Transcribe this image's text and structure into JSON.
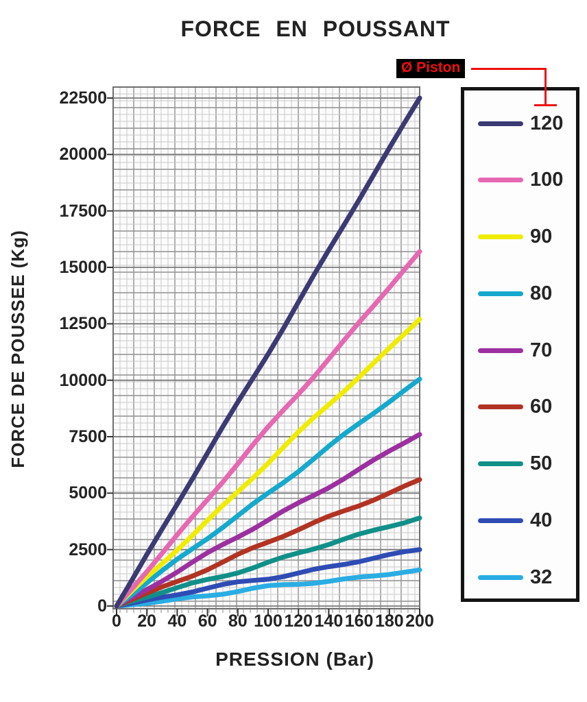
{
  "title": "FORCE EN POUSSANT",
  "axes": {
    "x_title": "PRESSION (Bar)",
    "y_title": "FORCE DE POUSSEE (Kg)"
  },
  "legend": {
    "callout_label": "Ø Piston",
    "callout_color": "#ee0f0f",
    "callout_bg": "#000000"
  },
  "chart_data": {
    "type": "line",
    "title": "FORCE EN POUSSANT",
    "xlabel": "PRESSION (Bar)",
    "ylabel": "FORCE DE POUSSEE (Kg)",
    "legend_title": "Ø Piston",
    "legend_position": "right",
    "grid": true,
    "xlim": [
      0,
      200
    ],
    "ylim": [
      0,
      22500
    ],
    "x_ticks": [
      0,
      20,
      40,
      60,
      80,
      100,
      120,
      140,
      160,
      180,
      200
    ],
    "y_ticks": [
      0,
      2500,
      5000,
      7500,
      10000,
      12500,
      15000,
      17500,
      20000,
      22500
    ],
    "x": [
      0,
      200
    ],
    "series": [
      {
        "name": "120",
        "color": "#3b3a74",
        "values": [
          0,
          22500
        ]
      },
      {
        "name": "100",
        "color": "#e668b2",
        "values": [
          0,
          15700
        ]
      },
      {
        "name": "90",
        "color": "#f0ec00",
        "values": [
          0,
          12700
        ]
      },
      {
        "name": "80",
        "color": "#16a9ce",
        "values": [
          0,
          10050
        ]
      },
      {
        "name": "70",
        "color": "#9c30a0",
        "values": [
          0,
          7600
        ]
      },
      {
        "name": "60",
        "color": "#b23323",
        "values": [
          0,
          5600
        ]
      },
      {
        "name": "50",
        "color": "#109089",
        "values": [
          0,
          3900
        ]
      },
      {
        "name": "40",
        "color": "#2e4cb4",
        "values": [
          0,
          2500
        ]
      },
      {
        "name": "32",
        "color": "#2aade2",
        "values": [
          0,
          1600
        ]
      }
    ]
  }
}
